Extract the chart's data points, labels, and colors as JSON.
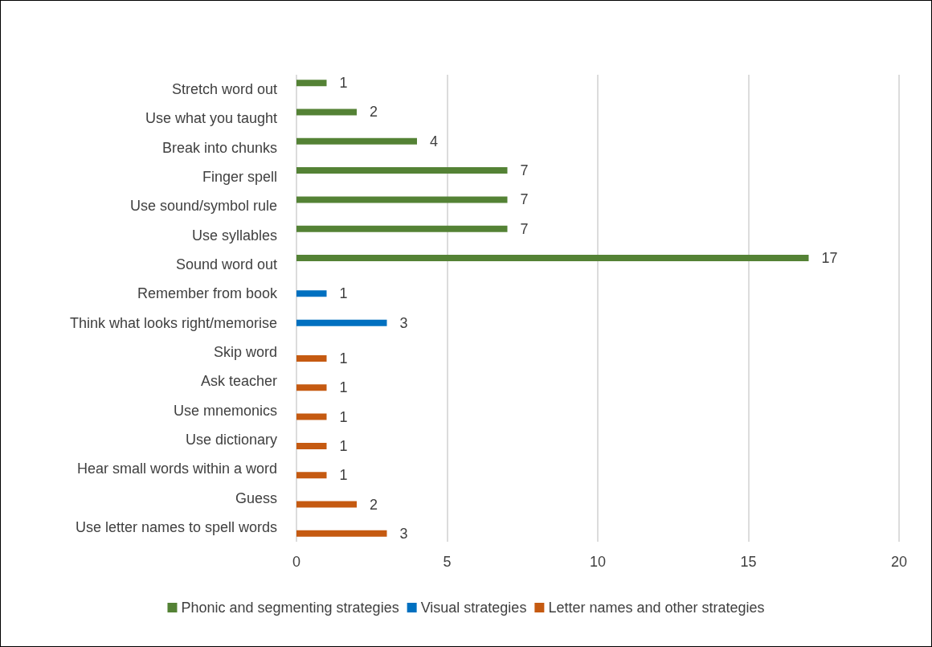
{
  "chart_data": {
    "type": "bar",
    "orientation": "horizontal",
    "categories": [
      "Stretch word out",
      "Use what you taught",
      "Break into chunks",
      "Finger spell",
      "Use sound/symbol rule",
      "Use syllables",
      "Sound word out",
      "Remember from book",
      "Think what looks right/memorise",
      "Skip word",
      "Ask teacher",
      "Use mnemonics",
      "Use dictionary",
      "Hear small words within a word",
      "Guess",
      "Use letter names to spell words"
    ],
    "series": [
      {
        "name": "Phonic and segmenting strategies",
        "color": "#548235",
        "values": [
          1,
          2,
          4,
          7,
          7,
          7,
          17,
          null,
          null,
          null,
          null,
          null,
          null,
          null,
          null,
          null
        ]
      },
      {
        "name": "Visual strategies",
        "color": "#0070c0",
        "values": [
          null,
          null,
          null,
          null,
          null,
          null,
          null,
          1,
          3,
          null,
          null,
          null,
          null,
          null,
          null,
          null
        ]
      },
      {
        "name": "Letter names and other strategies",
        "color": "#c55a11",
        "values": [
          null,
          null,
          null,
          null,
          null,
          null,
          null,
          null,
          null,
          1,
          1,
          1,
          1,
          1,
          2,
          3
        ]
      }
    ],
    "xlim": [
      0,
      20
    ],
    "xticks": [
      0,
      5,
      10,
      15,
      20
    ],
    "grid": "x",
    "legend": "bottom",
    "data_labels": true
  }
}
